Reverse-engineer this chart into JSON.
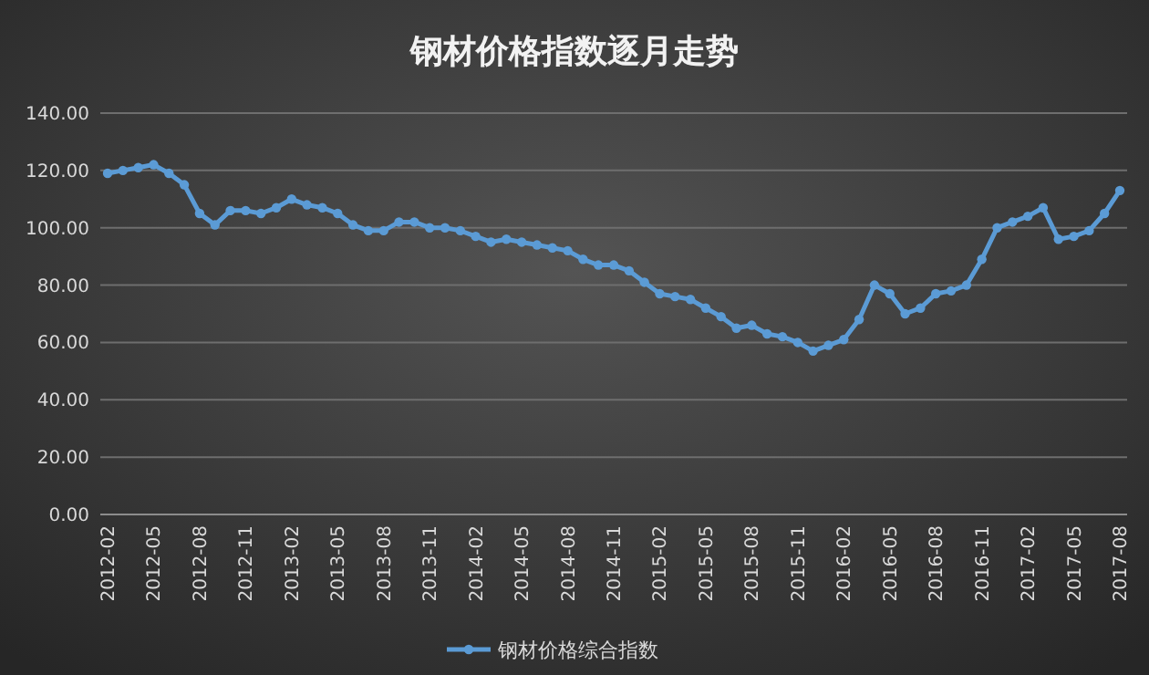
{
  "chart_data": {
    "type": "line",
    "title": "钢材价格指数逐月走势",
    "categories": [
      "2012-02",
      null,
      null,
      "2012-05",
      null,
      null,
      "2012-08",
      null,
      null,
      "2012-11",
      null,
      null,
      "2013-02",
      null,
      null,
      "2013-05",
      null,
      null,
      "2013-08",
      null,
      null,
      "2013-11",
      null,
      null,
      "2014-02",
      null,
      null,
      "2014-05",
      null,
      null,
      "2014-08",
      null,
      null,
      "2014-11",
      null,
      null,
      "2015-02",
      null,
      null,
      "2015-05",
      null,
      null,
      "2015-08",
      null,
      null,
      "2015-11",
      null,
      null,
      "2016-02",
      null,
      null,
      "2016-05",
      null,
      null,
      "2016-08",
      null,
      null,
      "2016-11",
      null,
      null,
      "2017-02",
      null,
      null,
      "2017-05",
      null,
      null,
      "2017-08"
    ],
    "series": [
      {
        "name": "钢材价格综合指数",
        "color": "#5b9bd5",
        "values": [
          119,
          120,
          121,
          122,
          119,
          115,
          105,
          101,
          106,
          106,
          105,
          107,
          110,
          108,
          107,
          105,
          101,
          99,
          99,
          102,
          102,
          100,
          100,
          99,
          97,
          95,
          96,
          95,
          94,
          93,
          92,
          89,
          87,
          87,
          85,
          81,
          77,
          76,
          75,
          72,
          69,
          65,
          66,
          63,
          62,
          60,
          57,
          59,
          61,
          68,
          80,
          77,
          70,
          72,
          77,
          78,
          80,
          89,
          100,
          102,
          104,
          107,
          96,
          97,
          99,
          105,
          113
        ]
      }
    ],
    "ylim": [
      0,
      140
    ],
    "yticks": [
      {
        "value": 0,
        "label": "0.00"
      },
      {
        "value": 20,
        "label": "20.00"
      },
      {
        "value": 40,
        "label": "40.00"
      },
      {
        "value": 60,
        "label": "60.00"
      },
      {
        "value": 80,
        "label": "80.00"
      },
      {
        "value": 100,
        "label": "100.00"
      },
      {
        "value": 120,
        "label": "120.00"
      },
      {
        "value": 140,
        "label": "140.00"
      }
    ],
    "grid": "y",
    "legend": "bottom",
    "marker": "circle",
    "line_style": "solid"
  }
}
